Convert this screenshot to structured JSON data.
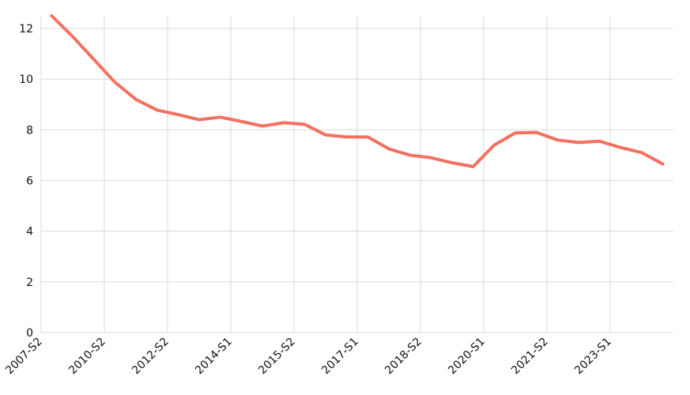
{
  "chart_data": {
    "type": "line",
    "categories": [
      null,
      null,
      null,
      null,
      null,
      null,
      null,
      null,
      null,
      null,
      null,
      null,
      null,
      null,
      null,
      null,
      null,
      null,
      null,
      null,
      null,
      null,
      null,
      null,
      null,
      null,
      null,
      null,
      null,
      null
    ],
    "series": [
      {
        "color": "#f4705f",
        "values": [
          12.5,
          11.68,
          10.78,
          9.88,
          9.2,
          8.78,
          8.6,
          8.4,
          8.5,
          8.33,
          8.15,
          8.28,
          8.22,
          7.8,
          7.72,
          7.72,
          7.25,
          7.0,
          6.9,
          6.7,
          6.55,
          7.4,
          7.88,
          7.9,
          7.6,
          7.5,
          7.55,
          7.3,
          7.1,
          6.65
        ]
      }
    ],
    "xlim": [
      0,
      30
    ],
    "xticks": [
      {
        "value": 0,
        "label": "2007-S2"
      },
      {
        "value": 3,
        "label": "2010-S2"
      },
      {
        "value": 6,
        "label": "2012-S2"
      },
      {
        "value": 9,
        "label": "2014-S1"
      },
      {
        "value": 12,
        "label": "2015-S2"
      },
      {
        "value": 15,
        "label": "2017-S1"
      },
      {
        "value": 18,
        "label": "2018-S2"
      },
      {
        "value": 21,
        "label": "2020-S1"
      },
      {
        "value": 24,
        "label": "2021-S2"
      },
      {
        "value": 27,
        "label": "2023-S1"
      }
    ],
    "ylim": [
      0,
      12.5
    ],
    "yticks": [
      0,
      2,
      4,
      6,
      8,
      10,
      12
    ],
    "grid": true
  }
}
